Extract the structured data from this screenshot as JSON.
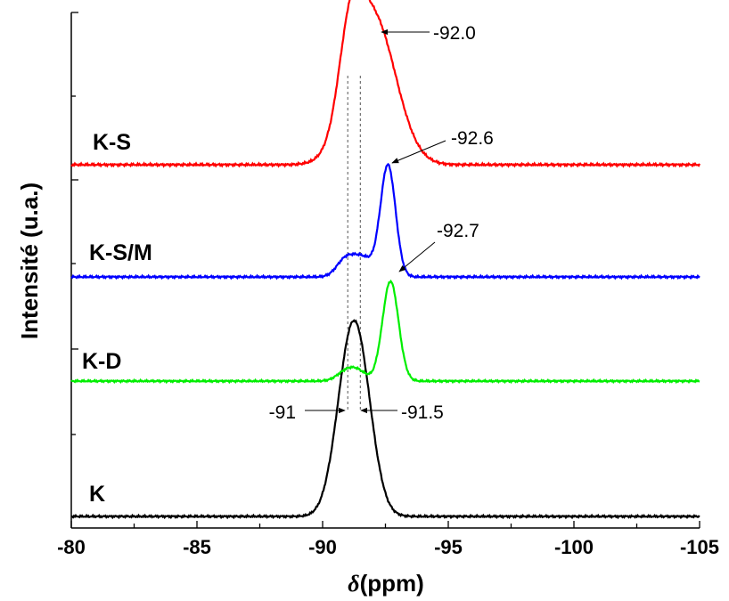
{
  "chart_data": {
    "type": "line",
    "xlabel_symbol": "δ",
    "xlabel_unit": "(ppm)",
    "ylabel": "Intensité (u.a.)",
    "xlim": [
      -80,
      -105
    ],
    "x_ticks": [
      -80,
      -85,
      -90,
      -95,
      -100,
      -105
    ],
    "x_tick_labels": [
      "-80",
      "-85",
      "-90",
      "-95",
      "-100",
      "-105"
    ],
    "grid": false,
    "series": [
      {
        "name": "K",
        "color": "#000000",
        "baseline": 0,
        "peaks": [
          {
            "x": -91.0,
            "height": 1.0,
            "width": 0.55
          },
          {
            "x": -91.5,
            "height": 1.0,
            "width": 0.55
          }
        ]
      },
      {
        "name": "K-D",
        "color": "#00ee00",
        "baseline": 1,
        "peaks": [
          {
            "x": -90.9,
            "height": 0.08,
            "width": 0.35
          },
          {
            "x": -91.4,
            "height": 0.09,
            "width": 0.35
          },
          {
            "x": -92.7,
            "height": 0.95,
            "width": 0.32
          }
        ]
      },
      {
        "name": "K-S/M",
        "color": "#0000ff",
        "baseline": 2,
        "peaks": [
          {
            "x": -90.9,
            "height": 0.14,
            "width": 0.35
          },
          {
            "x": -91.6,
            "height": 0.16,
            "width": 0.4
          },
          {
            "x": -92.6,
            "height": 0.95,
            "width": 0.3
          }
        ]
      },
      {
        "name": "K-S",
        "color": "#ff0000",
        "baseline": 3,
        "peaks": [
          {
            "x": -91.1,
            "height": 0.6,
            "width": 0.45
          },
          {
            "x": -92.0,
            "height": 1.15,
            "width": 0.9
          }
        ]
      }
    ],
    "annotations": [
      "-92.0",
      "-92.6",
      "-92.7",
      "-91",
      "-91.5"
    ],
    "reference_lines_x": [
      -91.0,
      -91.5
    ]
  }
}
